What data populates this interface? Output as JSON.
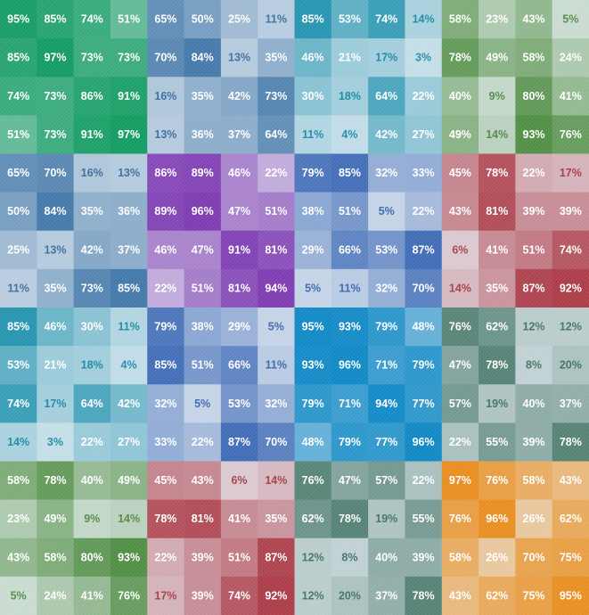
{
  "chart_data": {
    "type": "heatmap",
    "title": "",
    "xlabel": "",
    "ylabel": "",
    "layout": {
      "block_rows": 4,
      "block_cols": 4,
      "cells_per_block": 4
    },
    "block_base_colors": [
      [
        "#0f9a5f",
        "#2f6aa0",
        "#0f8aa8",
        "#4a8a3c"
      ],
      [
        "#2f6aa0",
        "#7a36b0",
        "#2f5fb0",
        "#a8323e"
      ],
      [
        "#0f8aa8",
        "#2f5fb0",
        "#0a86c4",
        "#3a6e5e"
      ],
      [
        "#4a8a3c",
        "#a8323e",
        "#3a6e5e",
        "#e88c1c"
      ]
    ],
    "values": [
      [
        95,
        85,
        74,
        51,
        65,
        50,
        25,
        11,
        85,
        53,
        74,
        14,
        58,
        23,
        43,
        5
      ],
      [
        85,
        97,
        73,
        73,
        70,
        84,
        13,
        35,
        46,
        21,
        17,
        3,
        78,
        49,
        58,
        24
      ],
      [
        74,
        73,
        86,
        91,
        16,
        35,
        42,
        73,
        30,
        18,
        64,
        22,
        40,
        9,
        80,
        41
      ],
      [
        51,
        73,
        91,
        97,
        13,
        36,
        37,
        64,
        11,
        4,
        42,
        27,
        49,
        14,
        93,
        76
      ],
      [
        65,
        70,
        16,
        13,
        86,
        89,
        46,
        22,
        79,
        85,
        32,
        33,
        45,
        78,
        22,
        17
      ],
      [
        50,
        84,
        35,
        36,
        89,
        96,
        47,
        51,
        38,
        51,
        5,
        22,
        43,
        81,
        39,
        39
      ],
      [
        25,
        13,
        42,
        37,
        46,
        47,
        91,
        81,
        29,
        66,
        53,
        87,
        6,
        41,
        51,
        74
      ],
      [
        11,
        35,
        73,
        85,
        22,
        51,
        81,
        94,
        5,
        11,
        32,
        70,
        14,
        35,
        87,
        92
      ],
      [
        85,
        46,
        30,
        11,
        79,
        38,
        29,
        5,
        95,
        93,
        79,
        48,
        76,
        62,
        12,
        12
      ],
      [
        53,
        21,
        18,
        4,
        85,
        51,
        66,
        11,
        93,
        96,
        71,
        79,
        47,
        78,
        8,
        20
      ],
      [
        74,
        17,
        64,
        42,
        32,
        5,
        53,
        32,
        79,
        71,
        94,
        77,
        57,
        19,
        40,
        37
      ],
      [
        14,
        3,
        22,
        27,
        33,
        22,
        87,
        70,
        48,
        79,
        77,
        96,
        22,
        55,
        39,
        78
      ],
      [
        58,
        78,
        40,
        49,
        45,
        43,
        6,
        14,
        76,
        47,
        57,
        22,
        97,
        76,
        58,
        43
      ],
      [
        23,
        49,
        9,
        14,
        78,
        81,
        41,
        35,
        62,
        78,
        19,
        55,
        76,
        96,
        26,
        62
      ],
      [
        43,
        58,
        80,
        93,
        22,
        39,
        51,
        87,
        12,
        8,
        40,
        39,
        58,
        26,
        70,
        75
      ],
      [
        5,
        24,
        41,
        76,
        17,
        39,
        74,
        92,
        12,
        20,
        37,
        78,
        43,
        62,
        75,
        95
      ]
    ],
    "value_suffix": "%",
    "grid": false,
    "legend": "none"
  }
}
